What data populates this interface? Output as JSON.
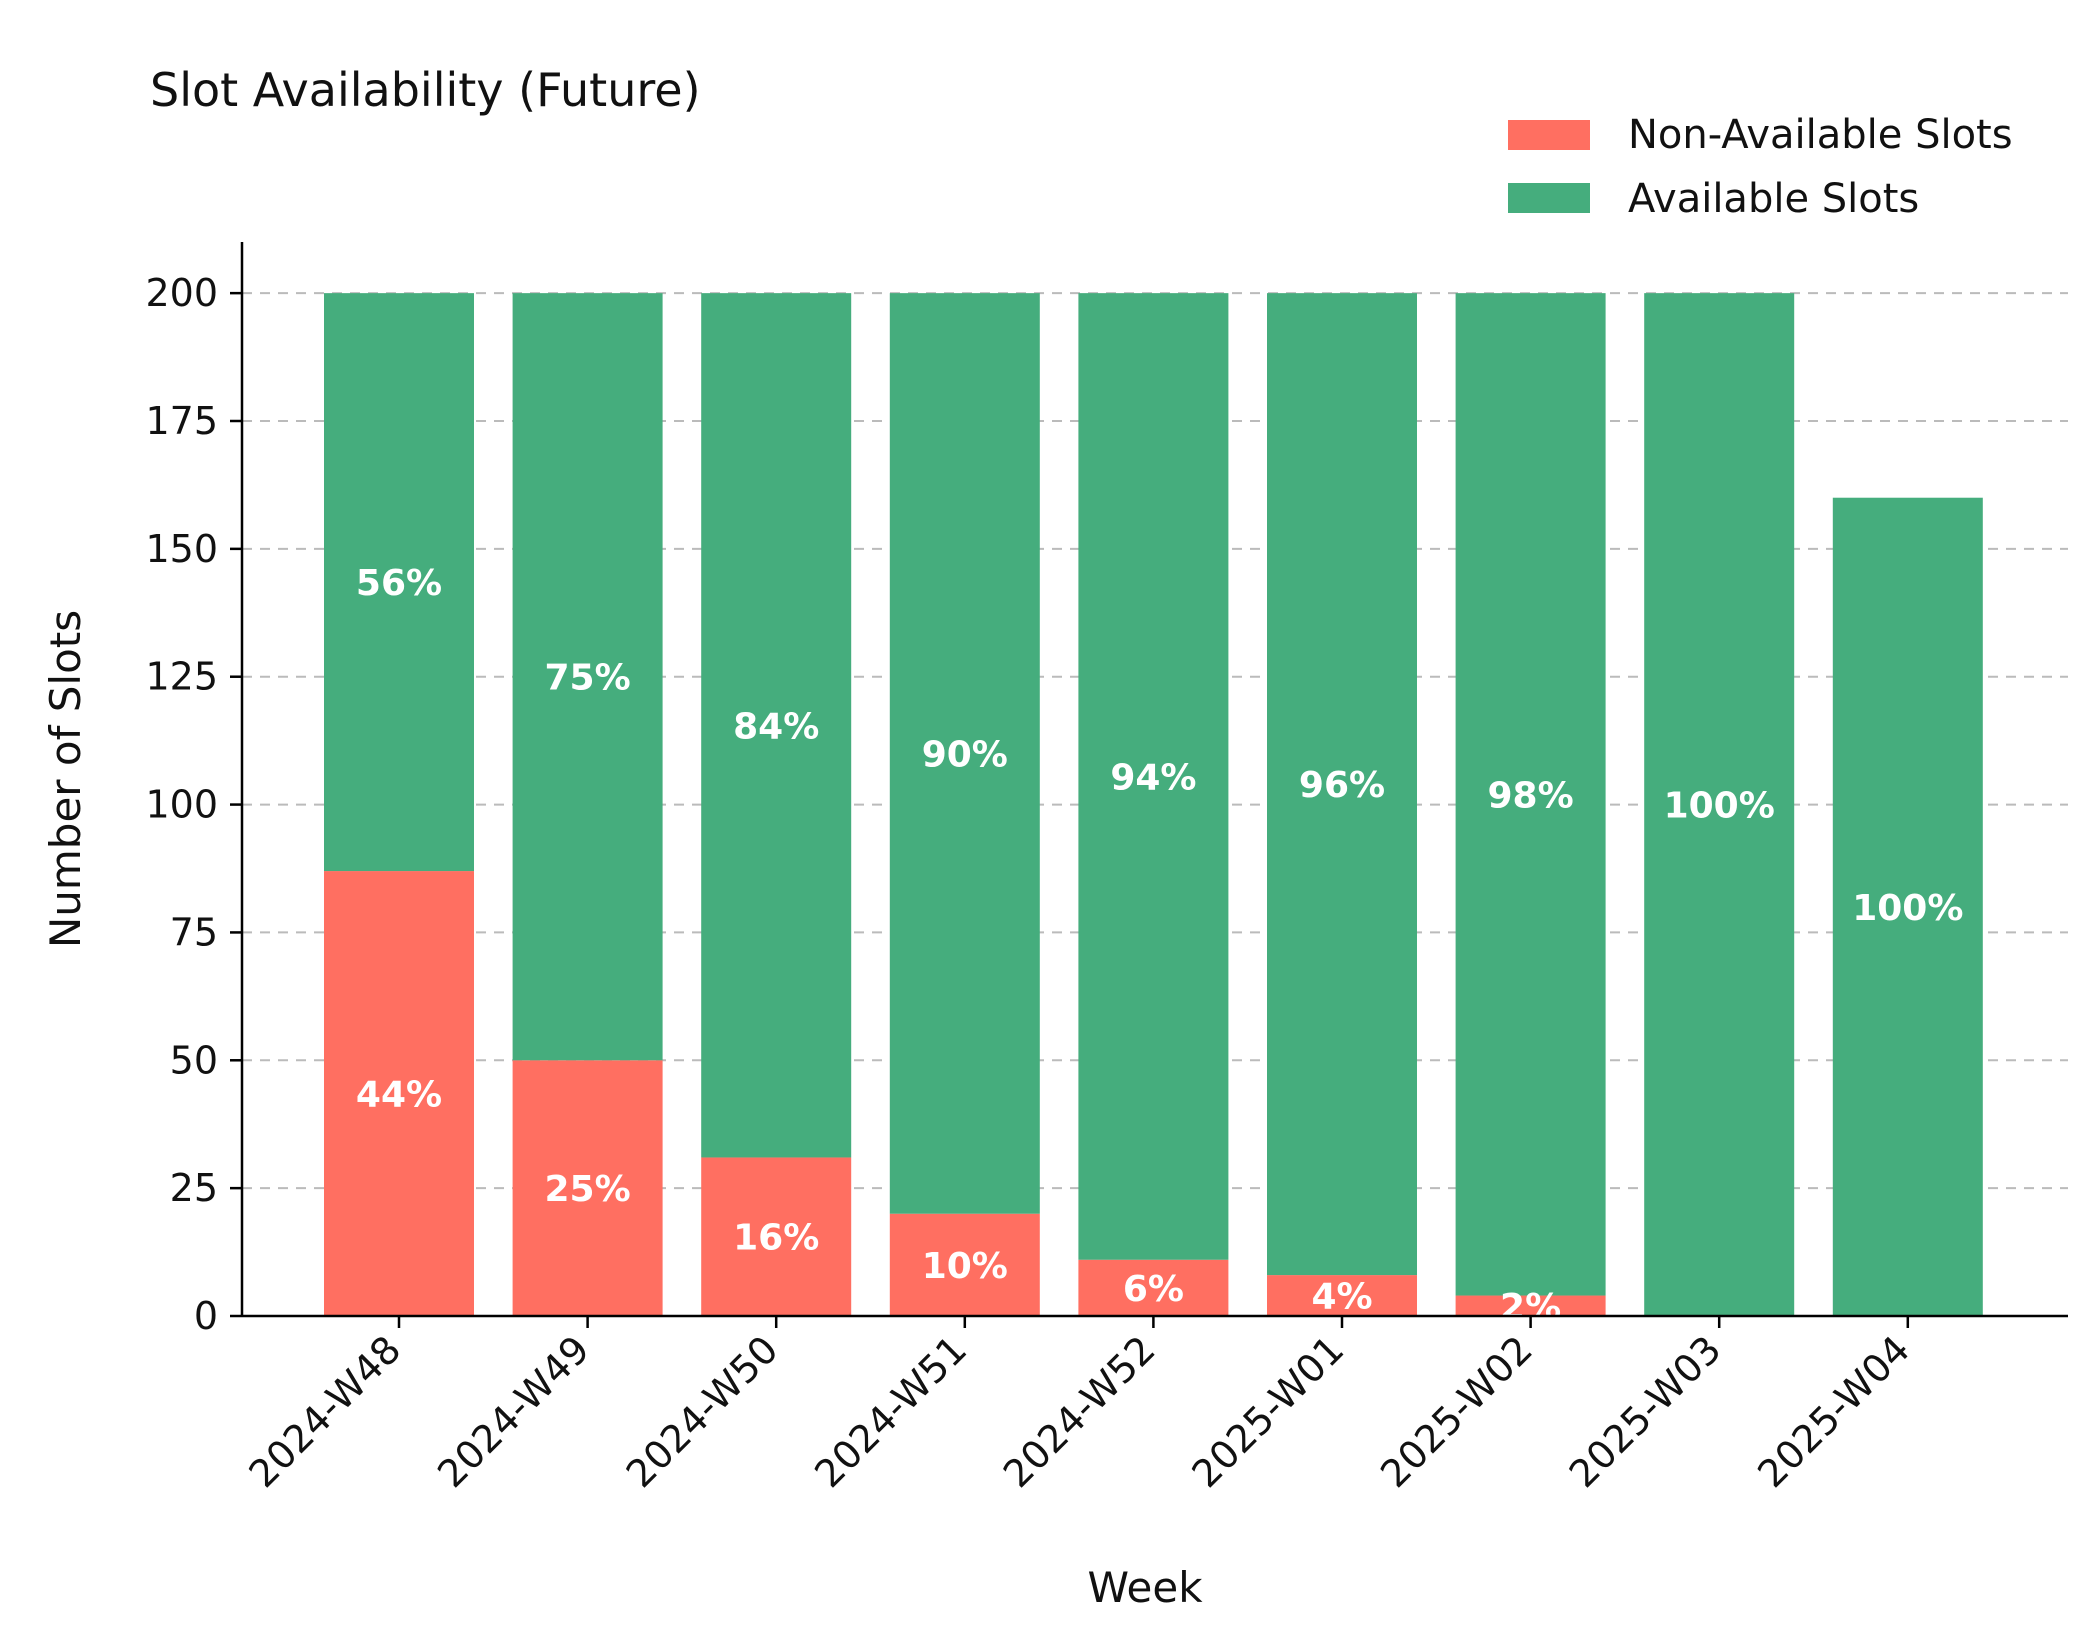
{
  "chart_data": {
    "type": "bar",
    "stacked": true,
    "title": "Slot Availability (Future)",
    "xlabel": "Week",
    "ylabel": "Number of Slots",
    "ylim": [
      0,
      210
    ],
    "yticks": [
      0,
      25,
      50,
      75,
      100,
      125,
      150,
      175,
      200
    ],
    "grid": "y-dashed",
    "legend_position": "top-right",
    "categories": [
      "2024-W48",
      "2024-W49",
      "2024-W50",
      "2024-W51",
      "2024-W52",
      "2025-W01",
      "2025-W02",
      "2025-W03",
      "2025-W04"
    ],
    "series": [
      {
        "name": "Non-Available Slots",
        "color": "#ff6f61",
        "values": [
          87,
          50,
          31,
          20,
          11,
          8,
          4,
          0,
          0
        ],
        "labels": [
          "44%",
          "25%",
          "16%",
          "10%",
          "6%",
          "4%",
          "2%",
          "",
          ""
        ]
      },
      {
        "name": "Available Slots",
        "color": "#45ad7d",
        "values": [
          113,
          150,
          169,
          180,
          189,
          192,
          196,
          200,
          160
        ],
        "labels": [
          "56%",
          "75%",
          "84%",
          "90%",
          "94%",
          "96%",
          "98%",
          "100%",
          "100%"
        ]
      }
    ]
  }
}
